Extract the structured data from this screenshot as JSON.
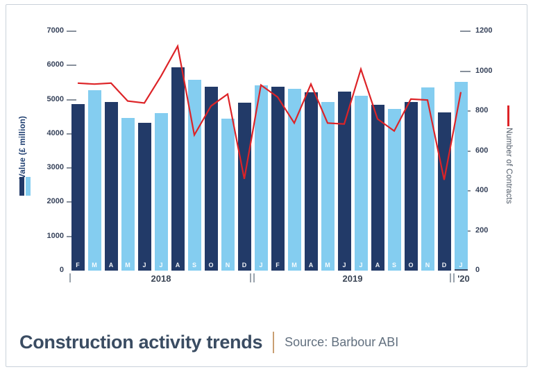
{
  "chart_data": {
    "type": "bar+line",
    "title": "Construction activity trends",
    "source": "Source: Barbour ABI",
    "months": [
      "F",
      "M",
      "A",
      "M",
      "J",
      "J",
      "A",
      "S",
      "O",
      "N",
      "D",
      "J",
      "F",
      "M",
      "A",
      "M",
      "J",
      "J",
      "A",
      "S",
      "O",
      "N",
      "D",
      "J"
    ],
    "years": [
      {
        "label": "2018",
        "months": 11
      },
      {
        "label": "2019",
        "months": 12
      },
      {
        "label": "'20",
        "months": 1
      }
    ],
    "left_axis": {
      "label": "Value (£ million)",
      "min": 0,
      "max": 7000,
      "ticks": [
        7000,
        6000,
        5000,
        4000,
        3000,
        2000,
        1000,
        0
      ]
    },
    "right_axis": {
      "label": "Number of Contracts",
      "min": 0,
      "max": 1200,
      "ticks": [
        1200,
        1000,
        800,
        600,
        400,
        200,
        0
      ]
    },
    "series": [
      {
        "name": "Value (£ million)",
        "type": "bar",
        "axis": "left",
        "colors": {
          "dark": "#223a68",
          "light": "#84cdf0"
        },
        "values": [
          4860,
          5270,
          4940,
          4460,
          4330,
          4610,
          5950,
          5580,
          5380,
          4450,
          4910,
          5410,
          5380,
          5310,
          5220,
          4940,
          5230,
          5120,
          4840,
          4720,
          4930,
          5360,
          4630,
          5510
        ]
      },
      {
        "name": "Number of Contracts",
        "type": "line",
        "axis": "right",
        "color": "#dd2327",
        "values": [
          940,
          935,
          940,
          850,
          840,
          975,
          1125,
          680,
          825,
          885,
          460,
          930,
          870,
          740,
          935,
          740,
          735,
          1010,
          760,
          700,
          860,
          855,
          455,
          895
        ]
      }
    ],
    "legend_position": "sides",
    "grid": false
  }
}
